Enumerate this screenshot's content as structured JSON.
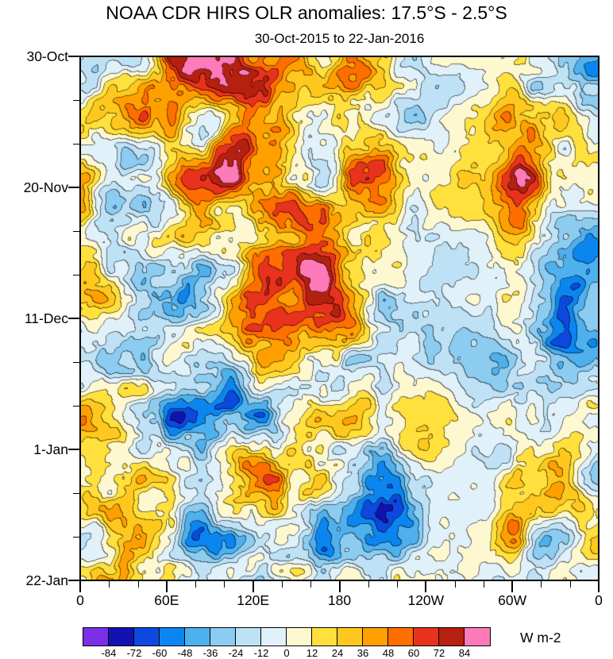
{
  "chart": {
    "title": "NOAA CDR HIRS OLR anomalies: 17.5°S - 2.5°S",
    "subtitle": "30-Oct-2015 to 22-Jan-2016",
    "units_label": "W m-2"
  },
  "chart_data": {
    "type": "heatmap",
    "title": "NOAA CDR HIRS OLR anomalies: 17.5°S - 2.5°S",
    "subtitle": "30-Oct-2015 to 22-Jan-2016",
    "x_tick_labels": [
      "0",
      "60E",
      "120E",
      "180",
      "120W",
      "60W",
      "0"
    ],
    "y_tick_labels": [
      "30-Oct",
      "20-Nov",
      "11-Dec",
      "1-Jan",
      "22-Jan"
    ],
    "legend_position": "bottom",
    "grid": false,
    "colorbar": {
      "units": "W m-2",
      "levels": [
        -84,
        -72,
        -60,
        -48,
        -36,
        -24,
        -12,
        0,
        12,
        24,
        36,
        48,
        60,
        72,
        84
      ],
      "colors": [
        "#7B2FE6",
        "#1212B0",
        "#0D49DE",
        "#0B86F0",
        "#4FB0EE",
        "#8CCCF0",
        "#BEE1F5",
        "#E0F1FA",
        "#FEF8D0",
        "#FFE03C",
        "#FFC81E",
        "#FFA000",
        "#FF6E00",
        "#E8321E",
        "#B5200F",
        "#FF7AB9"
      ]
    },
    "data_note": "Filled-contour Hovmoller field (time vs longitude); continuous gridded anomaly values are not individually readable from the image."
  }
}
